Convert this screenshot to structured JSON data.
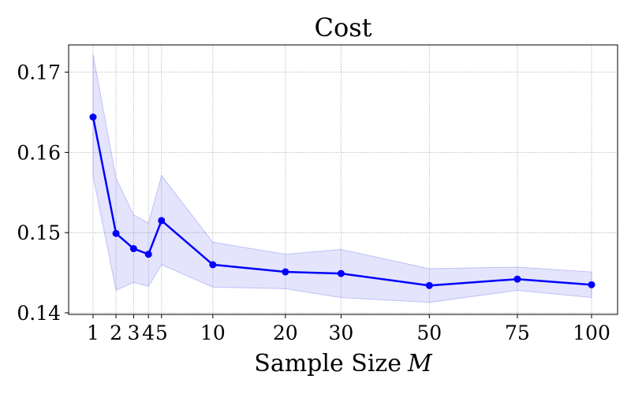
{
  "chart_data": {
    "type": "line",
    "title": "Cost",
    "xlabel": "Sample Size",
    "xlabel_var": "M",
    "x": [
      1,
      2,
      3,
      4,
      5,
      10,
      20,
      30,
      50,
      75,
      100
    ],
    "x_tick_labels": [
      "1",
      "2",
      "3",
      "4",
      "5",
      "10",
      "20",
      "30",
      "50",
      "75",
      "100"
    ],
    "y_ticks": [
      0.14,
      0.15,
      0.16,
      0.17
    ],
    "y_tick_labels": [
      "0.14",
      "0.15",
      "0.16",
      "0.17"
    ],
    "ylim": [
      0.1398,
      0.1734
    ],
    "x_scale": "sqrt",
    "grid": true,
    "series": [
      {
        "values": [
          0.1644,
          0.1499,
          0.148,
          0.1473,
          0.1515,
          0.146,
          0.1451,
          0.1449,
          0.1434,
          0.1442,
          0.1435
        ],
        "lower": [
          0.157,
          0.1428,
          0.1438,
          0.1433,
          0.146,
          0.1432,
          0.143,
          0.1419,
          0.1413,
          0.1428,
          0.1419
        ],
        "upper": [
          0.1722,
          0.1568,
          0.1522,
          0.1512,
          0.1571,
          0.1488,
          0.1473,
          0.1479,
          0.1455,
          0.1457,
          0.1451
        ],
        "color": "#0000ff",
        "band_color": "#6b6bf0"
      }
    ]
  }
}
